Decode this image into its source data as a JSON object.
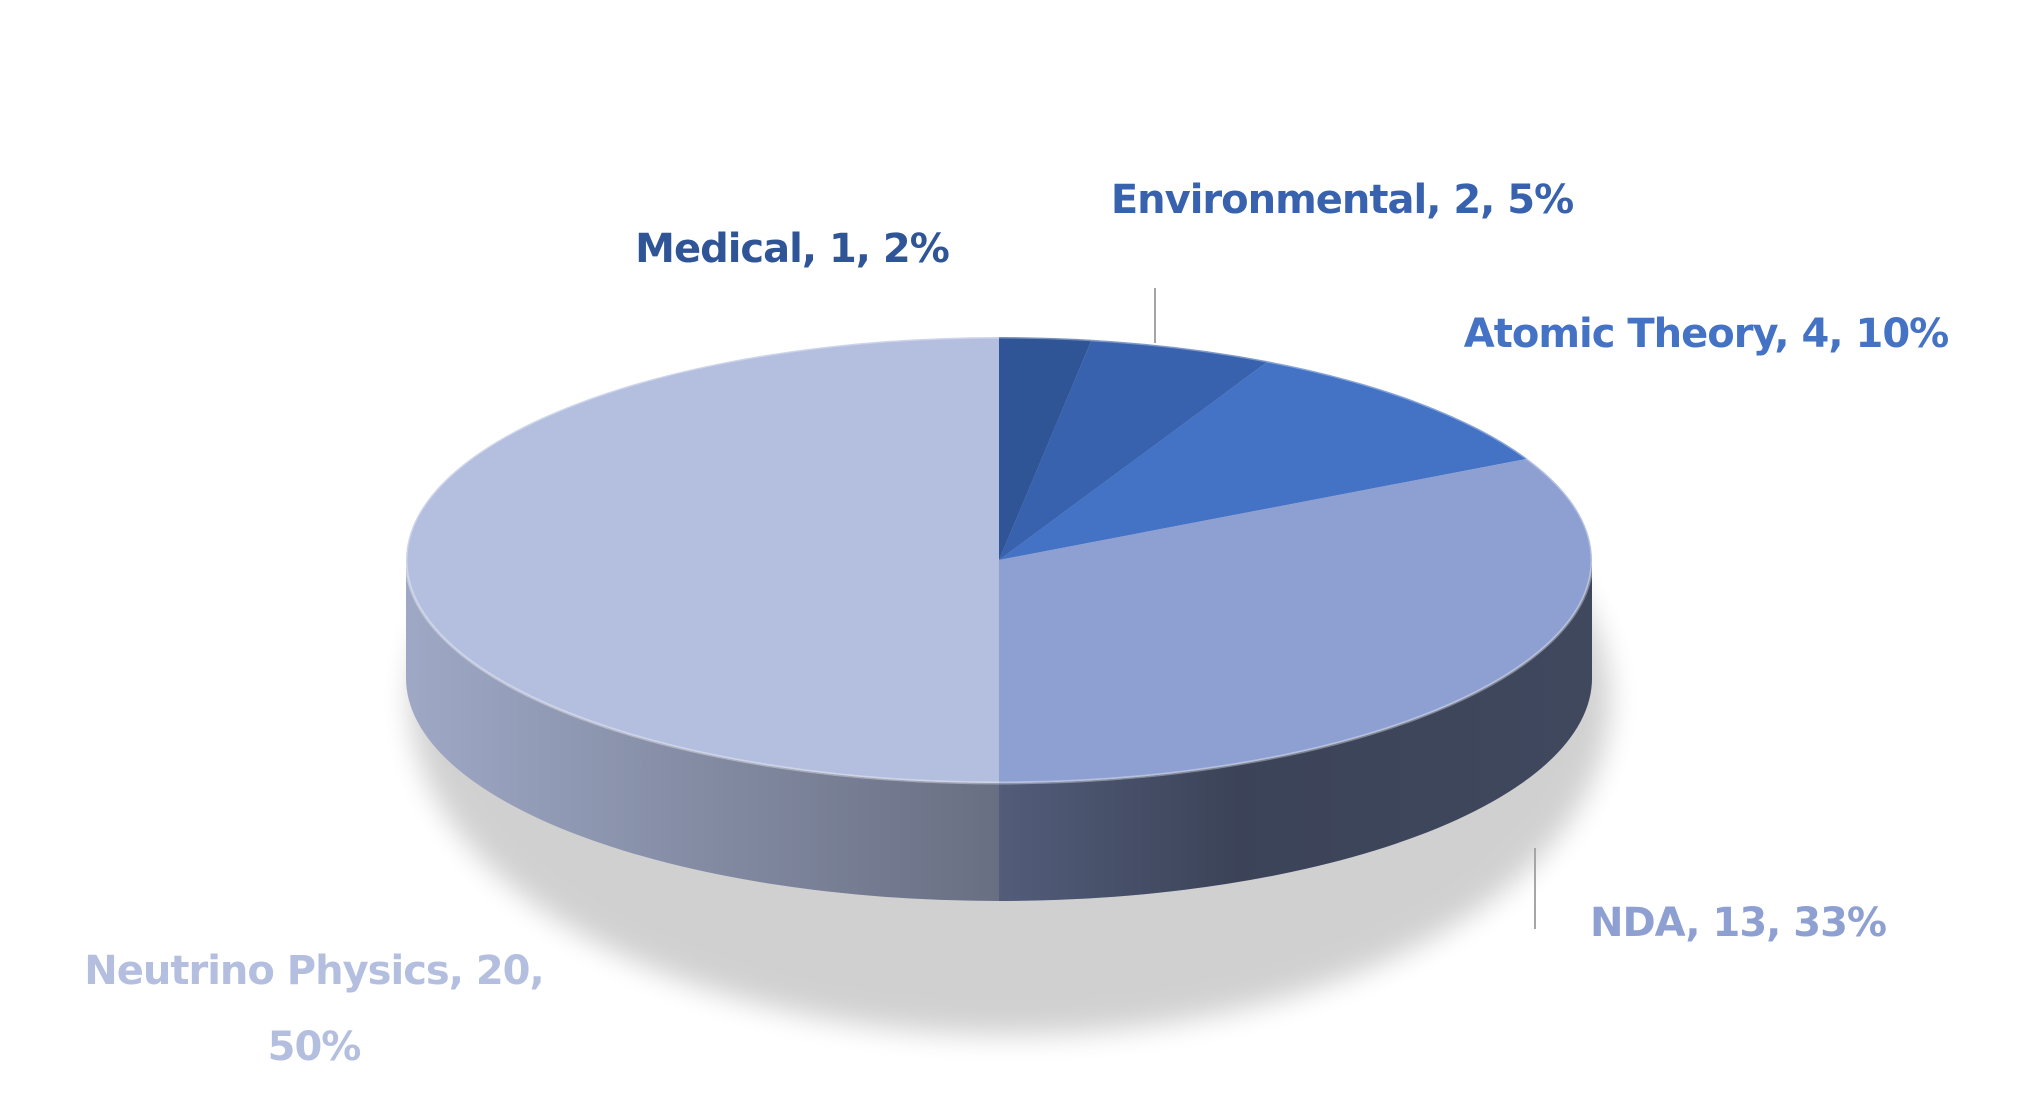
{
  "chart_data": {
    "type": "pie",
    "categories": [
      "Medical",
      "Environmental",
      "Atomic Theory",
      "NDA",
      "Neutrino Physics"
    ],
    "values": [
      1,
      2,
      4,
      13,
      20
    ],
    "value_labels": [
      "Medical, 1, 2%",
      "Environmental, 2, 5%",
      "Atomic Theory, 4, 10%",
      "NDA, 13, 33%",
      "Neutrino Physics, 20, 50%"
    ],
    "colors": [
      "#2f5597",
      "#3862ad",
      "#4472c4",
      "#8ea0d2",
      "#b4bfe0"
    ]
  }
}
